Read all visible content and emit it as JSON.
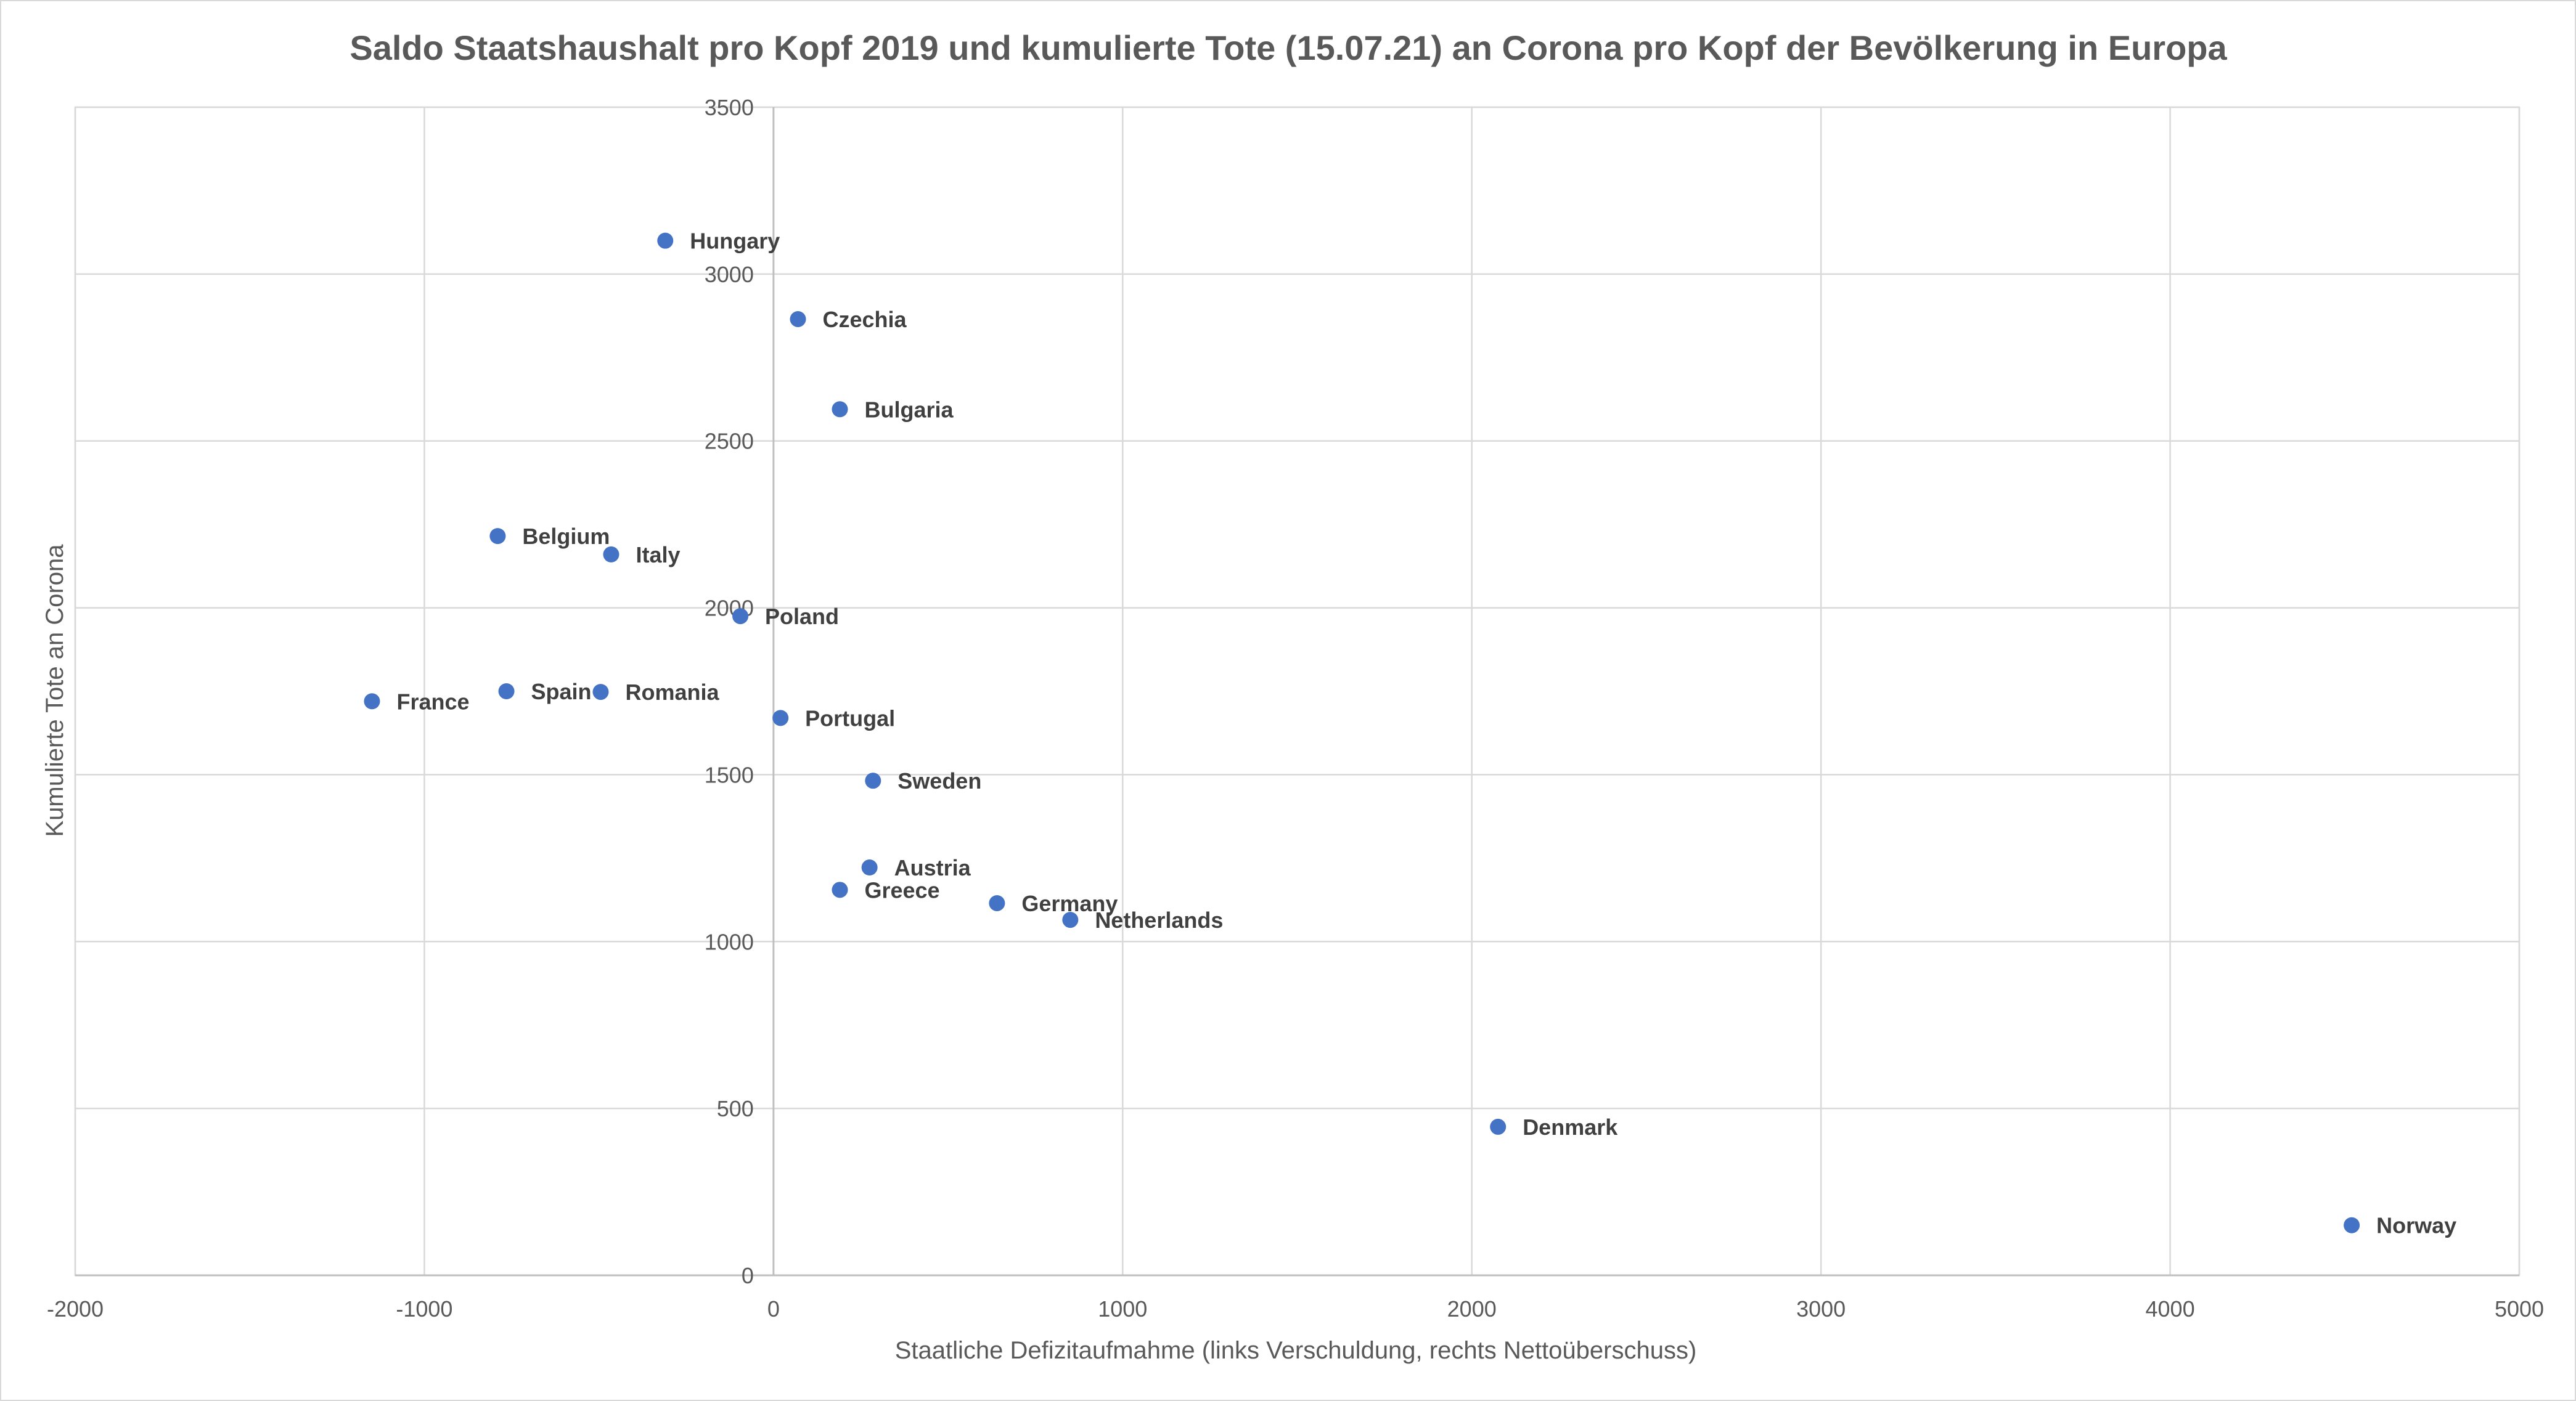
{
  "chart_data": {
    "type": "scatter",
    "title": "Saldo Staatshaushalt pro Kopf 2019 und kumulierte Tote (15.07.21) an Corona pro Kopf der Bevölkerung in Europa",
    "xlabel": "Staatliche Defizitaufmahme (links Verschuldung, rechts Nettoüberschuss)",
    "ylabel": "Kumulierte Tote an Corona",
    "xlim": [
      -2000,
      5000
    ],
    "ylim": [
      0,
      3500
    ],
    "xticks": [
      -2000,
      -1000,
      0,
      1000,
      2000,
      3000,
      4000,
      5000
    ],
    "yticks": [
      0,
      500,
      1000,
      1500,
      2000,
      2500,
      3000,
      3500
    ],
    "grid": true,
    "legend": "none",
    "marker_color": "#4472c4",
    "points": [
      {
        "label": "Hungary",
        "x": -310,
        "y": 3100
      },
      {
        "label": "Czechia",
        "x": 70,
        "y": 2865
      },
      {
        "label": "Bulgaria",
        "x": 190,
        "y": 2595
      },
      {
        "label": "Belgium",
        "x": -790,
        "y": 2215
      },
      {
        "label": "Italy",
        "x": -465,
        "y": 2160
      },
      {
        "label": "Poland",
        "x": -95,
        "y": 1975
      },
      {
        "label": "France",
        "x": -1150,
        "y": 1720
      },
      {
        "label": "Spain",
        "x": -765,
        "y": 1750
      },
      {
        "label": "Romania",
        "x": -495,
        "y": 1748
      },
      {
        "label": "Portugal",
        "x": 20,
        "y": 1670
      },
      {
        "label": "Sweden",
        "x": 285,
        "y": 1482
      },
      {
        "label": "Austria",
        "x": 275,
        "y": 1222
      },
      {
        "label": "Greece",
        "x": 190,
        "y": 1155
      },
      {
        "label": "Germany",
        "x": 640,
        "y": 1115
      },
      {
        "label": "Netherlands",
        "x": 850,
        "y": 1065
      },
      {
        "label": "Denmark",
        "x": 2075,
        "y": 445
      },
      {
        "label": "Norway",
        "x": 4520,
        "y": 150
      }
    ]
  }
}
